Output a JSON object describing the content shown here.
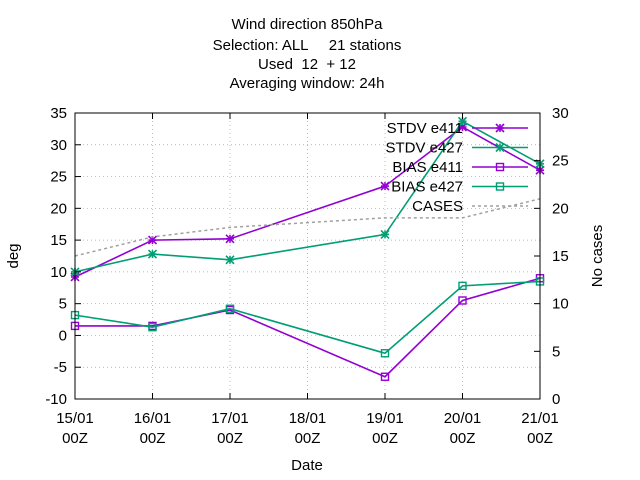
{
  "chart_data": {
    "type": "line",
    "title_lines": [
      "Wind direction 850hPa",
      "Selection: ALL     21 stations",
      "Used  12  + 12",
      "Averaging window: 24h"
    ],
    "xlabel": "Date",
    "ylabel": "deg",
    "y2label": "No cases",
    "x_ticks": [
      {
        "date": "2015-01-15",
        "line1": "15/01",
        "line2": "00Z"
      },
      {
        "date": "2015-01-16",
        "line1": "16/01",
        "line2": "00Z"
      },
      {
        "date": "2015-01-17",
        "line1": "17/01",
        "line2": "00Z"
      },
      {
        "date": "2015-01-18",
        "line1": "18/01",
        "line2": "00Z"
      },
      {
        "date": "2015-01-19",
        "line1": "19/01",
        "line2": "00Z"
      },
      {
        "date": "2015-01-20",
        "line1": "20/01",
        "line2": "00Z"
      },
      {
        "date": "2015-01-21",
        "line1": "21/01",
        "line2": "00Z"
      }
    ],
    "xlim": [
      "2015-01-15",
      "2015-01-21"
    ],
    "ylim": [
      -10,
      35
    ],
    "y_ticks": [
      -10,
      -5,
      0,
      5,
      10,
      15,
      20,
      25,
      30,
      35
    ],
    "y2lim": [
      0,
      30
    ],
    "y2_ticks": [
      0,
      5,
      10,
      15,
      20,
      25,
      30
    ],
    "grid": true,
    "legend_position": "top-right",
    "series": [
      {
        "name": "STDV e411",
        "axis": "y",
        "color": "#9400d3",
        "marker": "asterisk",
        "dash": "solid",
        "x": [
          "2015-01-15",
          "2015-01-16",
          "2015-01-17",
          "2015-01-19",
          "2015-01-20",
          "2015-01-21"
        ],
        "values": [
          9.2,
          15.0,
          15.2,
          23.5,
          32.8,
          26.0
        ]
      },
      {
        "name": "STDV e427",
        "axis": "y",
        "color": "#009e73",
        "marker": "asterisk",
        "dash": "solid",
        "x": [
          "2015-01-15",
          "2015-01-16",
          "2015-01-17",
          "2015-01-19",
          "2015-01-20",
          "2015-01-21"
        ],
        "values": [
          10.0,
          12.8,
          11.9,
          15.9,
          33.7,
          27.0
        ]
      },
      {
        "name": "BIAS e411",
        "axis": "y",
        "color": "#9400d3",
        "marker": "square",
        "dash": "solid",
        "x": [
          "2015-01-15",
          "2015-01-16",
          "2015-01-17",
          "2015-01-19",
          "2015-01-20",
          "2015-01-21"
        ],
        "values": [
          1.5,
          1.5,
          4.0,
          -6.5,
          5.5,
          9.0
        ]
      },
      {
        "name": "BIAS e427",
        "axis": "y",
        "color": "#009e73",
        "marker": "square",
        "dash": "solid",
        "x": [
          "2015-01-15",
          "2015-01-16",
          "2015-01-17",
          "2015-01-19",
          "2015-01-20",
          "2015-01-21"
        ],
        "values": [
          3.2,
          1.3,
          4.2,
          -2.8,
          7.8,
          8.5
        ]
      },
      {
        "name": "CASES",
        "axis": "y2",
        "color": "#a0a0a0",
        "marker": "none",
        "dash": "dotted",
        "x": [
          "2015-01-15",
          "2015-01-16",
          "2015-01-17",
          "2015-01-19",
          "2015-01-20",
          "2015-01-21"
        ],
        "values": [
          15,
          17,
          18,
          19,
          19,
          21
        ]
      }
    ]
  }
}
